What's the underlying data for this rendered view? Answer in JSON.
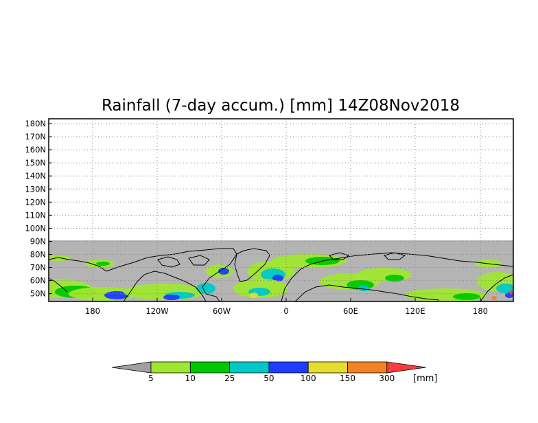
{
  "map": {
    "title": "Rainfall (7-day accum.) [mm] 14Z08Nov2018",
    "lat_labels": [
      "180N",
      "170N",
      "160N",
      "150N",
      "140N",
      "130N",
      "120N",
      "110N",
      "100N",
      "90N",
      "80N",
      "70N",
      "60N",
      "50N"
    ],
    "lon_labels": [
      "180",
      "120W",
      "60W",
      "0",
      "60E",
      "120E",
      "180"
    ],
    "missing_color": "#b4b4b4",
    "ocean_pattern_colors": [
      "#a0e632",
      "#00c800",
      "#00c8c8",
      "#1e3cff",
      "#e6dc32",
      "#f08228",
      "#fa3c3c"
    ]
  },
  "colorbar": {
    "unit": "[mm]",
    "ticks": [
      "5",
      "10",
      "25",
      "50",
      "100",
      "150",
      "300"
    ],
    "colors": [
      "#a0a0a0",
      "#a0e632",
      "#00c800",
      "#00c8c8",
      "#1e3cff",
      "#e6dc32",
      "#f08228",
      "#fa3c3c"
    ]
  }
}
